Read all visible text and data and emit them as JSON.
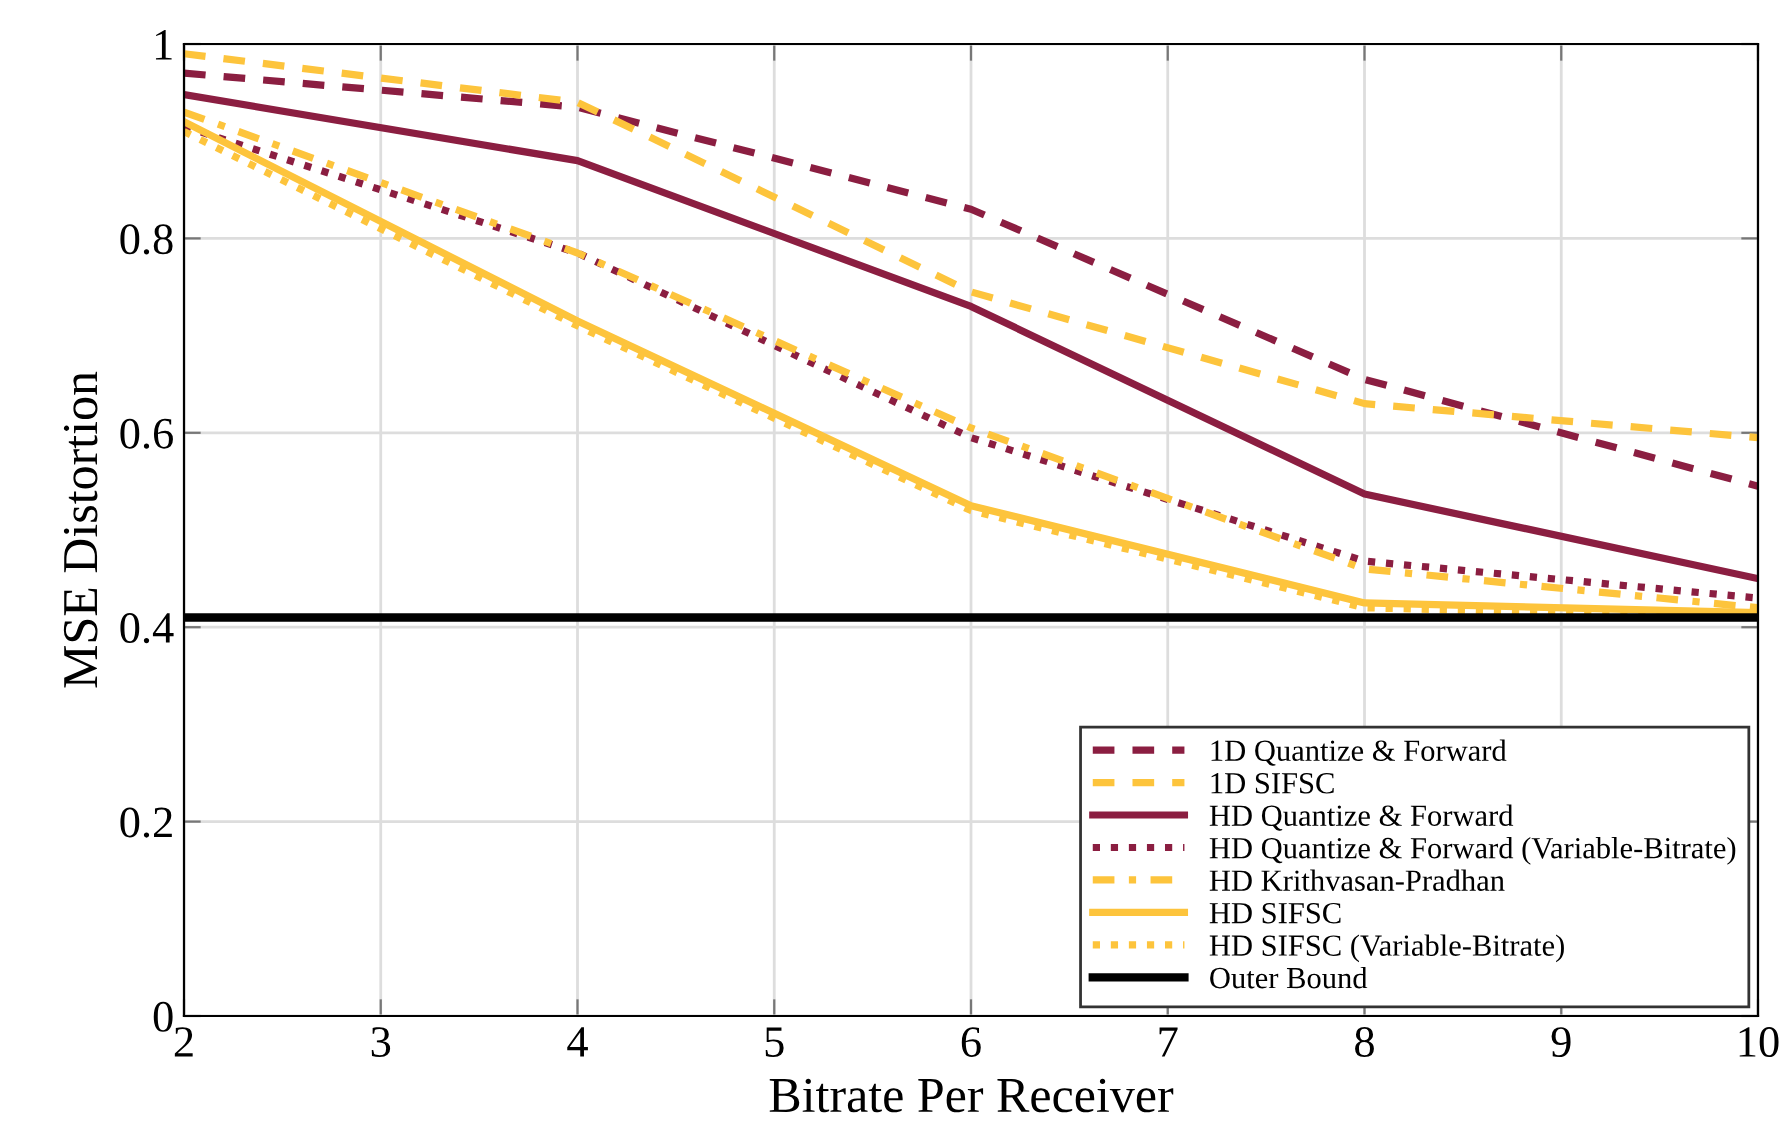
{
  "chart_data": {
    "type": "line",
    "xlabel": "Bitrate Per Receiver",
    "ylabel": "MSE Distortion",
    "x": [
      2,
      4,
      6,
      8,
      10
    ],
    "series": [
      {
        "name": "1D Quantize & Forward",
        "color": "#8b1e41",
        "line_style": "dashed",
        "values": [
          0.97,
          0.935,
          0.83,
          0.655,
          0.545
        ]
      },
      {
        "name": "1D SIFSC",
        "color": "#fdc43c",
        "line_style": "dashed",
        "values": [
          0.99,
          0.94,
          0.745,
          0.63,
          0.595
        ]
      },
      {
        "name": "HD Quantize & Forward",
        "color": "#8b1e41",
        "line_style": "solid",
        "values": [
          0.948,
          0.88,
          0.73,
          0.537,
          0.45
        ]
      },
      {
        "name": "HD Quantize & Forward (Variable-Bitrate)",
        "color": "#8b1e41",
        "line_style": "dotted",
        "values": [
          0.915,
          0.785,
          0.595,
          0.468,
          0.43
        ]
      },
      {
        "name": "HD Krithvasan-Pradhan",
        "color": "#fdc43c",
        "line_style": "dashdot",
        "values": [
          0.93,
          0.785,
          0.605,
          0.46,
          0.42
        ]
      },
      {
        "name": "HD SIFSC",
        "color": "#fdc43c",
        "line_style": "solid",
        "values": [
          0.92,
          0.715,
          0.525,
          0.425,
          0.415
        ]
      },
      {
        "name": "HD SIFSC (Variable-Bitrate)",
        "color": "#fdc43c",
        "line_style": "dotted",
        "values": [
          0.91,
          0.71,
          0.52,
          0.42,
          0.41
        ]
      },
      {
        "name": "Outer Bound",
        "color": "#000000",
        "line_style": "solid",
        "x": [
          2,
          10
        ],
        "values": [
          0.41,
          0.41
        ]
      }
    ],
    "xlim": [
      2,
      10
    ],
    "ylim": [
      0,
      1
    ],
    "xticks": [
      2,
      3,
      4,
      5,
      6,
      7,
      8,
      9,
      10
    ],
    "yticks": [
      0,
      0.2,
      0.4,
      0.6,
      0.8,
      1
    ],
    "grid": true,
    "legend": "bottom right",
    "marker": "none"
  }
}
